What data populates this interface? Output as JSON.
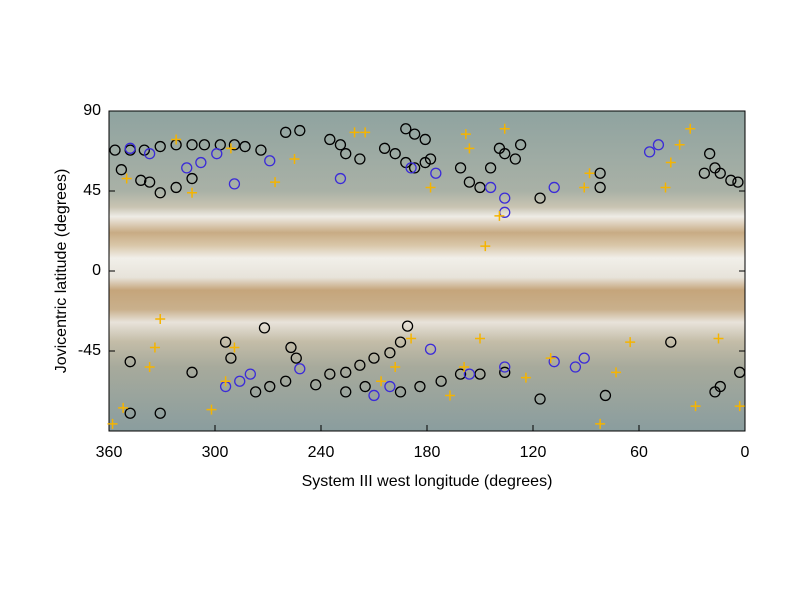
{
  "chart_data": {
    "type": "scatter",
    "x_label": "System III west longitude (degrees)",
    "y_label": "Jovicentric latitude (degrees)",
    "xlim": [
      360,
      0
    ],
    "xticks": [
      360,
      300,
      240,
      180,
      120,
      60,
      0
    ],
    "ylim": [
      -90,
      90
    ],
    "yticks": [
      90,
      45,
      0,
      -45
    ],
    "series": [
      {
        "color": "#000000",
        "marker": "circle",
        "x": [
          356.6,
          348,
          340,
          331,
          322,
          313,
          306,
          297,
          289,
          283,
          274,
          353,
          342,
          337,
          331,
          322,
          313,
          260,
          252,
          235,
          229,
          226,
          218,
          204,
          198,
          192,
          187,
          181,
          192,
          187,
          181,
          178,
          161,
          156,
          150,
          144,
          139,
          136,
          130,
          127,
          116,
          82,
          82,
          20,
          17,
          14,
          8,
          4,
          23,
          348,
          331,
          348,
          313,
          294,
          291,
          272,
          277,
          269,
          260,
          257,
          254,
          243,
          235,
          226,
          218,
          210,
          201,
          195,
          191,
          226,
          215,
          195,
          184,
          172,
          161,
          150,
          136,
          116,
          79,
          42,
          17,
          14,
          3
        ],
        "y": [
          68,
          68,
          68,
          70,
          71,
          71,
          71,
          71,
          71,
          70,
          68,
          57,
          51,
          50,
          44,
          47,
          52,
          78,
          79,
          74,
          71,
          66,
          63,
          69,
          66,
          61,
          58,
          61,
          80,
          77,
          74,
          63,
          58,
          50,
          47,
          58,
          69,
          66,
          63,
          71,
          41,
          55,
          47,
          66,
          58,
          55,
          51,
          50,
          55,
          -51,
          -80,
          -80,
          -57,
          -40,
          -49,
          -32,
          -68,
          -65,
          -62,
          -43,
          -49,
          -64,
          -58,
          -57,
          -53,
          -49,
          -46,
          -40,
          -31,
          -68,
          -65,
          -68,
          -65,
          -62,
          -58,
          -58,
          -57,
          -72,
          -70,
          -40,
          -68,
          -65,
          -57
        ]
      },
      {
        "color": "#3b2bd8",
        "marker": "circle",
        "x": [
          348,
          337,
          316,
          308,
          299,
          289,
          269,
          229,
          189,
          175,
          144,
          136,
          136,
          108,
          54,
          49,
          294,
          286,
          280,
          252,
          210,
          201,
          178,
          156,
          108,
          96,
          91,
          136
        ],
        "y": [
          69,
          66,
          58,
          61,
          66,
          49,
          62,
          52,
          58,
          55,
          47,
          41,
          33,
          47,
          67,
          71,
          -65,
          -62,
          -58,
          -55,
          -70,
          -65,
          -44,
          -58,
          -51,
          -54,
          -49,
          -54
        ]
      },
      {
        "color": "#f5b400",
        "marker": "plus",
        "x": [
          358,
          352,
          337,
          334,
          331,
          302,
          294,
          289,
          350,
          322,
          313,
          291,
          266,
          255,
          221,
          215,
          198,
          206,
          189,
          178,
          158,
          156,
          136,
          139,
          147,
          167,
          159,
          150,
          124,
          110,
          91,
          88,
          82,
          45,
          42,
          37,
          31,
          28,
          15,
          3,
          65,
          73
        ],
        "y": [
          -86,
          -77,
          -54,
          -43,
          -27,
          -78,
          -62,
          -43,
          52,
          74,
          44,
          69,
          50,
          63,
          78,
          78,
          -54,
          -62,
          -38,
          47,
          77,
          69,
          80,
          31,
          14,
          -70,
          -54,
          -38,
          -60,
          -49,
          47,
          55,
          -86,
          47,
          61,
          71,
          80,
          -76,
          -38,
          -76,
          -40,
          -57
        ]
      }
    ]
  }
}
